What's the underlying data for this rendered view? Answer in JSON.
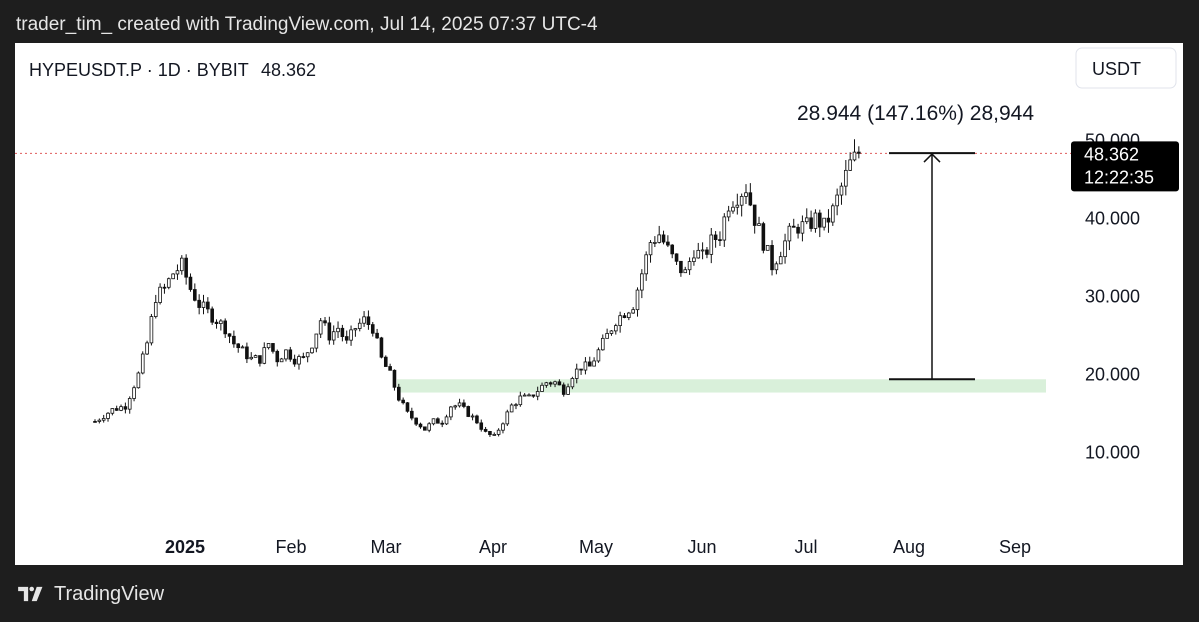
{
  "header_text": "trader_tim_ created with TradingView.com, Jul 14, 2025 07:37 UTC-4",
  "footer": {
    "brand": "TradingView",
    "logo_icon": "tradingview-logo-icon"
  },
  "chart_data": {
    "type": "candlestick",
    "title": "HYPEUSDT.P · 1D · BYBIT",
    "last_price": "48.362",
    "currency": "USDT",
    "price_tag": {
      "value": "48.362",
      "countdown": "12:22:35"
    },
    "measure": {
      "label": "28.944 (147.16%) 28,944",
      "from": 19.4,
      "to": 48.4
    },
    "support_zone": {
      "from": 17.7,
      "to": 19.4,
      "start_x": "Mar 2025",
      "color": "#d9f0da"
    },
    "y_axis": {
      "ticks": [
        10,
        20,
        30,
        40,
        50
      ],
      "tick_labels": [
        "10.000",
        "20.000",
        "30.000",
        "40.000",
        "50.000"
      ],
      "range": [
        0,
        56
      ]
    },
    "x_axis": {
      "labels": [
        "2025",
        "Feb",
        "Mar",
        "Apr",
        "May",
        "Jun",
        "Jul",
        "Aug",
        "Sep"
      ]
    },
    "line_color": "#e05c5c",
    "candle_color": "#111111",
    "path_points": [
      [
        0,
        14
      ],
      [
        4,
        15.5
      ],
      [
        7,
        16
      ],
      [
        10,
        20
      ],
      [
        12,
        24
      ],
      [
        14,
        30
      ],
      [
        16,
        31
      ],
      [
        18,
        33
      ],
      [
        20,
        34
      ],
      [
        22,
        31
      ],
      [
        24,
        29
      ],
      [
        26,
        28
      ],
      [
        28,
        27
      ],
      [
        30,
        26
      ],
      [
        32,
        24
      ],
      [
        34,
        23
      ],
      [
        36,
        22
      ],
      [
        38,
        22
      ],
      [
        40,
        24
      ],
      [
        42,
        22
      ],
      [
        44,
        23
      ],
      [
        46,
        22
      ],
      [
        48,
        22
      ],
      [
        50,
        24
      ],
      [
        52,
        27
      ],
      [
        54,
        25
      ],
      [
        56,
        26
      ],
      [
        58,
        24
      ],
      [
        60,
        26
      ],
      [
        62,
        27
      ],
      [
        64,
        26
      ],
      [
        66,
        22
      ],
      [
        68,
        20
      ],
      [
        70,
        17
      ],
      [
        72,
        15
      ],
      [
        74,
        14
      ],
      [
        76,
        13
      ],
      [
        78,
        14
      ],
      [
        80,
        14
      ],
      [
        82,
        16
      ],
      [
        84,
        16
      ],
      [
        86,
        15
      ],
      [
        88,
        14
      ],
      [
        90,
        12.5
      ],
      [
        92,
        12
      ],
      [
        94,
        14
      ],
      [
        96,
        16
      ],
      [
        98,
        17
      ],
      [
        100,
        17
      ],
      [
        102,
        18
      ],
      [
        104,
        19
      ],
      [
        106,
        19
      ],
      [
        108,
        18
      ],
      [
        110,
        20
      ],
      [
        112,
        21
      ],
      [
        114,
        21
      ],
      [
        116,
        23
      ],
      [
        118,
        25
      ],
      [
        120,
        27
      ],
      [
        122,
        28
      ],
      [
        124,
        29
      ],
      [
        126,
        33
      ],
      [
        128,
        37
      ],
      [
        130,
        38
      ],
      [
        132,
        36
      ],
      [
        134,
        34
      ],
      [
        136,
        33
      ],
      [
        138,
        36
      ],
      [
        140,
        35
      ],
      [
        142,
        37
      ],
      [
        144,
        38
      ],
      [
        146,
        42
      ],
      [
        148,
        43
      ],
      [
        150,
        44
      ],
      [
        152,
        40
      ],
      [
        154,
        37
      ],
      [
        156,
        34
      ],
      [
        158,
        36
      ],
      [
        160,
        38
      ],
      [
        162,
        39
      ],
      [
        164,
        39
      ],
      [
        166,
        40
      ],
      [
        168,
        39
      ],
      [
        170,
        41
      ],
      [
        172,
        44
      ],
      [
        174,
        47
      ],
      [
        176,
        48.4
      ]
    ]
  }
}
